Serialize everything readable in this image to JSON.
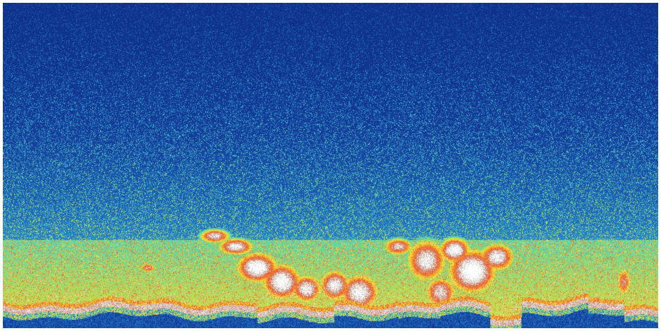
{
  "image": {
    "kind": "echogram",
    "colormap": [
      "#0b2a7e",
      "#153c9a",
      "#1f6fbf",
      "#37b3d6",
      "#5ad1b0",
      "#a9de5a",
      "#f2e33a",
      "#f6a030",
      "#e8522a",
      "#c8c0b8",
      "#ffffff"
    ],
    "background_color": "#0c2a80",
    "features": [
      "surface-noise-band",
      "fish-school-left",
      "fish-school-center",
      "fish-school-right",
      "seabed-line"
    ]
  }
}
